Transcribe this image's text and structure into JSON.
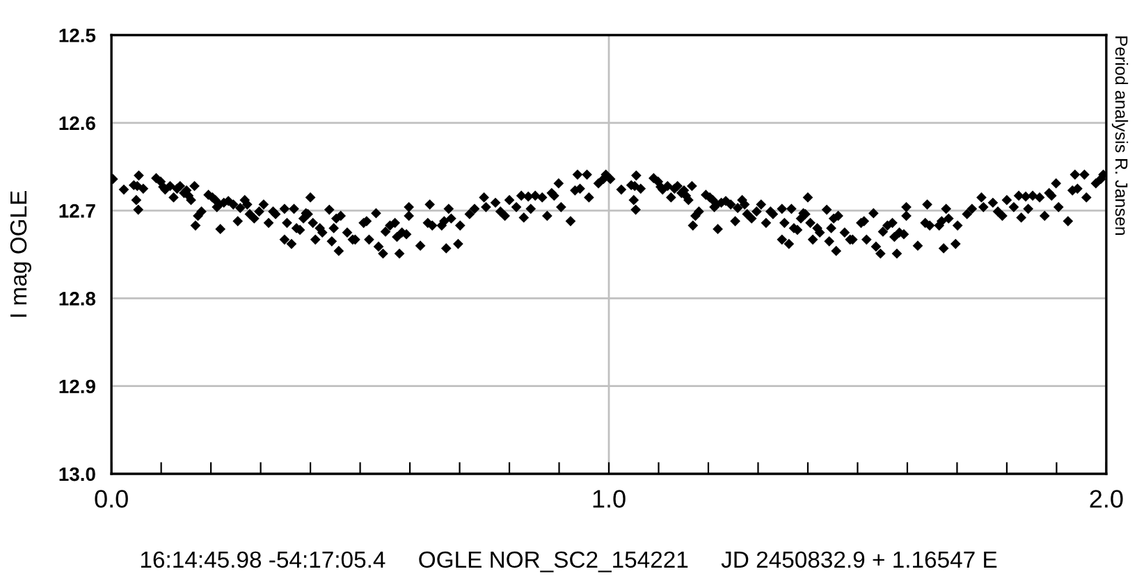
{
  "chart_data": {
    "type": "scatter",
    "ylabel": "I mag OGLE",
    "annotations": [
      "16:14:45.98 -54:17:05.4     OGLE NOR_SC2_154221     JD 2450832.9 + 1.16547 E",
      "Period analysis R. Jansen"
    ],
    "series": [
      {
        "color": "#000000",
        "marker": "diamond",
        "x": [
          0.003,
          0.025,
          0.045,
          0.055,
          0.052,
          0.05,
          0.054,
          0.064,
          0.09,
          0.099,
          0.104,
          0.108,
          0.118,
          0.125,
          0.132,
          0.138,
          0.146,
          0.151,
          0.155,
          0.16,
          0.167,
          0.169,
          0.174,
          0.181,
          0.195,
          0.203,
          0.209,
          0.212,
          0.217,
          0.219,
          0.226,
          0.235,
          0.245,
          0.254,
          0.259,
          0.268,
          0.273,
          0.278,
          0.287,
          0.297,
          0.306,
          0.316,
          0.325,
          0.33,
          0.348,
          0.348,
          0.353,
          0.362,
          0.367,
          0.372,
          0.379,
          0.386,
          0.391,
          0.395,
          0.4,
          0.405,
          0.41,
          0.419,
          0.424,
          0.438,
          0.443,
          0.447,
          0.452,
          0.457,
          0.461,
          0.474,
          0.485,
          0.49,
          0.507,
          0.513,
          0.518,
          0.532,
          0.537,
          0.546,
          0.551,
          0.56,
          0.57,
          0.574,
          0.579,
          0.584,
          0.593,
          0.598,
          0.598,
          0.621,
          0.636,
          0.64,
          0.645,
          0.664,
          0.669,
          0.673,
          0.678,
          0.683,
          0.697,
          0.701,
          0.72,
          0.73,
          0.749,
          0.753,
          0.772,
          0.782,
          0.791,
          0.8,
          0.814,
          0.824,
          0.829,
          0.838,
          0.843,
          0.852,
          0.866,
          0.876,
          0.885,
          0.89,
          0.899,
          0.904,
          0.923,
          0.932,
          0.937,
          0.942,
          0.956,
          0.96,
          0.979,
          0.989,
          0.994,
          1.003,
          1.025,
          1.045,
          1.055,
          1.052,
          1.05,
          1.054,
          1.064,
          1.09,
          1.099,
          1.104,
          1.108,
          1.118,
          1.125,
          1.132,
          1.138,
          1.146,
          1.151,
          1.155,
          1.16,
          1.167,
          1.169,
          1.174,
          1.181,
          1.195,
          1.203,
          1.209,
          1.212,
          1.217,
          1.219,
          1.226,
          1.235,
          1.245,
          1.254,
          1.259,
          1.268,
          1.273,
          1.278,
          1.287,
          1.297,
          1.306,
          1.316,
          1.325,
          1.33,
          1.348,
          1.348,
          1.353,
          1.362,
          1.367,
          1.372,
          1.379,
          1.386,
          1.391,
          1.395,
          1.4,
          1.405,
          1.41,
          1.419,
          1.424,
          1.438,
          1.443,
          1.447,
          1.452,
          1.457,
          1.461,
          1.474,
          1.485,
          1.49,
          1.507,
          1.513,
          1.518,
          1.532,
          1.537,
          1.546,
          1.551,
          1.56,
          1.57,
          1.574,
          1.579,
          1.584,
          1.593,
          1.598,
          1.598,
          1.621,
          1.636,
          1.64,
          1.645,
          1.664,
          1.669,
          1.673,
          1.678,
          1.683,
          1.697,
          1.701,
          1.72,
          1.73,
          1.749,
          1.753,
          1.772,
          1.782,
          1.791,
          1.8,
          1.814,
          1.824,
          1.829,
          1.838,
          1.843,
          1.852,
          1.866,
          1.876,
          1.885,
          1.89,
          1.899,
          1.904,
          1.923,
          1.932,
          1.937,
          1.942,
          1.956,
          1.96,
          1.979,
          1.989,
          1.994
        ],
        "values": [
          12.664,
          12.676,
          12.671,
          12.66,
          12.672,
          12.688,
          12.699,
          12.675,
          12.663,
          12.667,
          12.673,
          12.676,
          12.672,
          12.685,
          12.675,
          12.672,
          12.68,
          12.677,
          12.683,
          12.688,
          12.672,
          12.717,
          12.706,
          12.701,
          12.682,
          12.685,
          12.688,
          12.696,
          12.693,
          12.721,
          12.691,
          12.689,
          12.693,
          12.712,
          12.697,
          12.688,
          12.693,
          12.704,
          12.709,
          12.701,
          12.693,
          12.714,
          12.701,
          12.704,
          12.698,
          12.733,
          12.714,
          12.738,
          12.698,
          12.72,
          12.722,
          12.709,
          12.703,
          12.704,
          12.685,
          12.714,
          12.733,
          12.72,
          12.725,
          12.699,
          12.735,
          12.72,
          12.709,
          12.746,
          12.706,
          12.725,
          12.733,
          12.733,
          12.714,
          12.712,
          12.733,
          12.703,
          12.741,
          12.749,
          12.724,
          12.717,
          12.714,
          12.73,
          12.749,
          12.725,
          12.727,
          12.696,
          12.706,
          12.74,
          12.714,
          12.693,
          12.717,
          12.717,
          12.712,
          12.743,
          12.698,
          12.709,
          12.738,
          12.717,
          12.704,
          12.698,
          12.685,
          12.696,
          12.691,
          12.701,
          12.706,
          12.688,
          12.696,
          12.683,
          12.708,
          12.684,
          12.698,
          12.683,
          12.685,
          12.706,
          12.68,
          12.683,
          12.669,
          12.696,
          12.712,
          12.677,
          12.659,
          12.675,
          12.659,
          12.685,
          12.669,
          12.664,
          12.659,
          12.664,
          12.676,
          12.671,
          12.66,
          12.672,
          12.688,
          12.699,
          12.675,
          12.663,
          12.667,
          12.673,
          12.676,
          12.672,
          12.685,
          12.675,
          12.672,
          12.68,
          12.677,
          12.683,
          12.688,
          12.672,
          12.717,
          12.706,
          12.701,
          12.682,
          12.685,
          12.688,
          12.696,
          12.693,
          12.721,
          12.691,
          12.689,
          12.693,
          12.712,
          12.697,
          12.688,
          12.693,
          12.704,
          12.709,
          12.701,
          12.693,
          12.714,
          12.701,
          12.704,
          12.698,
          12.733,
          12.714,
          12.738,
          12.698,
          12.72,
          12.722,
          12.709,
          12.703,
          12.704,
          12.685,
          12.714,
          12.733,
          12.72,
          12.725,
          12.699,
          12.735,
          12.72,
          12.709,
          12.746,
          12.706,
          12.725,
          12.733,
          12.733,
          12.714,
          12.712,
          12.733,
          12.703,
          12.741,
          12.749,
          12.724,
          12.717,
          12.714,
          12.73,
          12.749,
          12.725,
          12.727,
          12.696,
          12.706,
          12.74,
          12.714,
          12.693,
          12.717,
          12.717,
          12.712,
          12.743,
          12.698,
          12.709,
          12.738,
          12.717,
          12.704,
          12.698,
          12.685,
          12.696,
          12.691,
          12.701,
          12.706,
          12.688,
          12.696,
          12.683,
          12.708,
          12.684,
          12.698,
          12.683,
          12.685,
          12.706,
          12.68,
          12.683,
          12.669,
          12.696,
          12.712,
          12.677,
          12.659,
          12.675,
          12.659,
          12.685,
          12.669,
          12.664,
          12.659
        ]
      }
    ],
    "xlim": [
      0.0,
      2.0
    ],
    "xticks": [
      {
        "value": 0.0,
        "label": "0.0"
      },
      {
        "value": 0.1,
        "label": null
      },
      {
        "value": 0.2,
        "label": null
      },
      {
        "value": 0.3,
        "label": null
      },
      {
        "value": 0.4,
        "label": null
      },
      {
        "value": 0.5,
        "label": null
      },
      {
        "value": 0.6,
        "label": null
      },
      {
        "value": 0.7,
        "label": null
      },
      {
        "value": 0.8,
        "label": null
      },
      {
        "value": 0.9,
        "label": null
      },
      {
        "value": 1.0,
        "label": "1.0"
      },
      {
        "value": 1.1,
        "label": null
      },
      {
        "value": 1.2,
        "label": null
      },
      {
        "value": 1.3,
        "label": null
      },
      {
        "value": 1.4,
        "label": null
      },
      {
        "value": 1.5,
        "label": null
      },
      {
        "value": 1.6,
        "label": null
      },
      {
        "value": 1.7,
        "label": null
      },
      {
        "value": 1.8,
        "label": null
      },
      {
        "value": 1.9,
        "label": null
      },
      {
        "value": 2.0,
        "label": "2.0"
      }
    ],
    "ylim": [
      13.0,
      12.5
    ],
    "yticks": [
      12.5,
      12.6,
      12.7,
      12.8,
      12.9,
      {
        "value": 13.0,
        "label": "13.0"
      }
    ],
    "grid": true,
    "legend": false
  }
}
